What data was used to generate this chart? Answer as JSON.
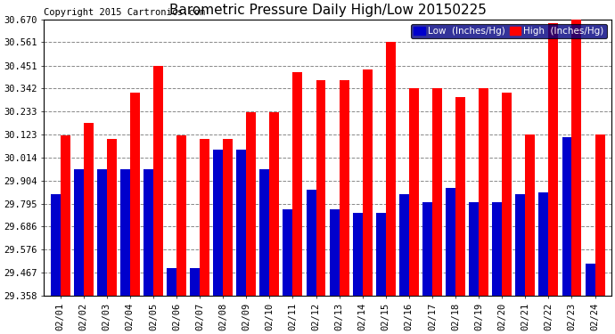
{
  "title": "Barometric Pressure Daily High/Low 20150225",
  "copyright": "Copyright 2015 Cartronics.com",
  "legend_low": "Low  (Inches/Hg)",
  "legend_high": "High  (Inches/Hg)",
  "dates": [
    "02/01",
    "02/02",
    "02/03",
    "02/04",
    "02/05",
    "02/06",
    "02/07",
    "02/08",
    "02/09",
    "02/10",
    "02/11",
    "02/12",
    "02/13",
    "02/14",
    "02/15",
    "02/16",
    "02/17",
    "02/18",
    "02/19",
    "02/20",
    "02/21",
    "02/22",
    "02/23",
    "02/24"
  ],
  "low_values": [
    29.84,
    29.96,
    29.96,
    29.96,
    29.96,
    29.49,
    29.49,
    30.05,
    30.05,
    29.96,
    29.77,
    29.86,
    29.77,
    29.75,
    29.75,
    29.84,
    29.8,
    29.87,
    29.8,
    29.8,
    29.84,
    29.85,
    30.11,
    29.51
  ],
  "high_values": [
    30.12,
    30.18,
    30.1,
    30.32,
    30.451,
    30.12,
    30.1,
    30.1,
    30.23,
    30.23,
    30.42,
    30.38,
    30.38,
    30.43,
    30.561,
    30.342,
    30.342,
    30.3,
    30.342,
    30.32,
    30.123,
    30.65,
    30.67,
    30.123
  ],
  "ylim_min": 29.358,
  "ylim_max": 30.67,
  "yticks": [
    29.358,
    29.467,
    29.576,
    29.686,
    29.795,
    29.904,
    30.014,
    30.123,
    30.233,
    30.342,
    30.451,
    30.561,
    30.67
  ],
  "low_color": "#0000cc",
  "high_color": "#ff0000",
  "background_color": "#ffffff",
  "grid_color": "#888888",
  "title_fontsize": 11,
  "copyright_fontsize": 7.5,
  "bar_width": 0.42
}
